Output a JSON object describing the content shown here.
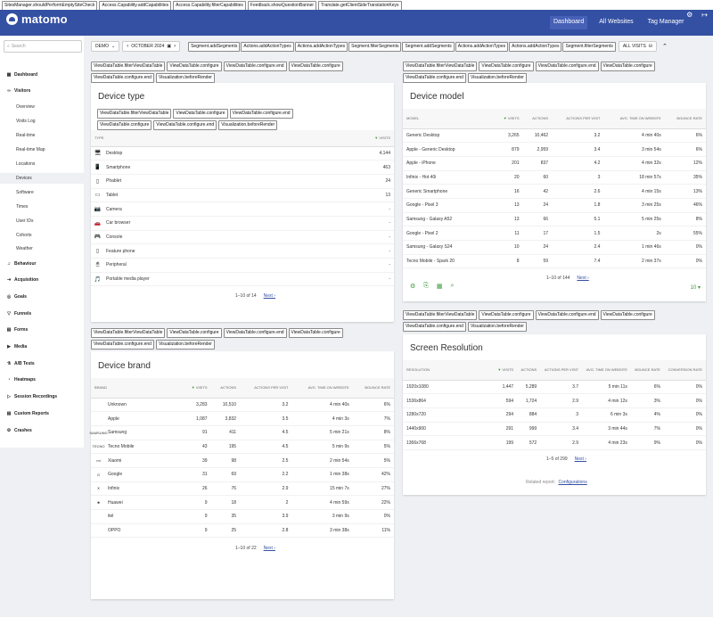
{
  "hooks_top": [
    "SitesManager.shouldPerformEmptySiteCheck",
    "Access.Capability.addCapabilities",
    "Access.Capability.filterCapabilities",
    "Feedback.showQuestionBanner",
    "Translate.getClientSideTranslationKeys"
  ],
  "brand": {
    "name": "matomo"
  },
  "topnav": {
    "dashboard": "Dashboard",
    "all_websites": "All Websites",
    "tag_manager": "Tag Manager"
  },
  "search": {
    "placeholder": "Search"
  },
  "sidebar": {
    "items": [
      {
        "label": "Dashboard",
        "type": "cat",
        "icon": "dashboard-icon"
      },
      {
        "label": "Visitors",
        "type": "cat",
        "icon": "visitors-icon"
      },
      {
        "label": "Overview",
        "type": "sub"
      },
      {
        "label": "Visits Log",
        "type": "sub"
      },
      {
        "label": "Real-time",
        "type": "sub"
      },
      {
        "label": "Real-time Map",
        "type": "sub"
      },
      {
        "label": "Locations",
        "type": "sub"
      },
      {
        "label": "Devices",
        "type": "sub",
        "selected": true
      },
      {
        "label": "Software",
        "type": "sub"
      },
      {
        "label": "Times",
        "type": "sub"
      },
      {
        "label": "User IDs",
        "type": "sub"
      },
      {
        "label": "Cohorts",
        "type": "sub"
      },
      {
        "label": "Weather",
        "type": "sub"
      },
      {
        "label": "Behaviour",
        "type": "cat",
        "icon": "bell-icon"
      },
      {
        "label": "Acquisition",
        "type": "cat",
        "icon": "acquisition-icon"
      },
      {
        "label": "Goals",
        "type": "cat",
        "icon": "target-icon"
      },
      {
        "label": "Funnels",
        "type": "cat",
        "icon": "funnel-icon"
      },
      {
        "label": "Forms",
        "type": "cat",
        "icon": "forms-icon"
      },
      {
        "label": "Media",
        "type": "cat",
        "icon": "media-icon"
      },
      {
        "label": "A/B Tests",
        "type": "cat",
        "icon": "flask-icon"
      },
      {
        "label": "Heatmaps",
        "type": "cat",
        "icon": "heatmap-icon"
      },
      {
        "label": "Session Recordings",
        "type": "cat",
        "icon": "play-icon"
      },
      {
        "label": "Custom Reports",
        "type": "cat",
        "icon": "report-icon"
      },
      {
        "label": "Crashes",
        "type": "cat",
        "icon": "bug-icon"
      }
    ]
  },
  "controls": {
    "site": "DEMO",
    "date": "OCTOBER 2024",
    "segment_hooks": [
      "Segment.addSegments",
      "Actions.addActionTypes",
      "Actions.addActionTypes",
      "Segment.filterSegments",
      "Segment.addSegments",
      "Actions.addActionTypes",
      "Actions.addActionTypes",
      "Segment.filterSegments"
    ],
    "segment": "ALL VISITS"
  },
  "viz_hooks_full": [
    "ViewDataTable.filterViewDataTable",
    "ViewDataTable.configure",
    "ViewDataTable.configure.end",
    "ViewDataTable.configure",
    "ViewDataTable.configure.end",
    "Visualization.beforeRender"
  ],
  "viz_hooks_r": [
    "ViewDataTable.filterViewDataTable",
    "ViewDataTable.configure",
    "ViewDataTable.configure.end",
    "ViewDataTable.configure",
    "ViewDataTable.configure.end",
    "Visualization.beforeRender"
  ],
  "device_type": {
    "title": "Device type",
    "inner_hooks": [
      "ViewDataTable.filterViewDataTable",
      "ViewDataTable.configure",
      "ViewDataTable.configure.end",
      "ViewDataTable.configure",
      "ViewDataTable.configure.end",
      "Visualization.beforeRender"
    ],
    "col_type": "TYPE",
    "col_visits": "VISITS",
    "rows": [
      {
        "label": "Desktop",
        "visits": "4,144",
        "icon": "desktop-icon",
        "glyph": "🖥"
      },
      {
        "label": "Smartphone",
        "visits": "463",
        "icon": "smartphone-icon",
        "glyph": "📱"
      },
      {
        "label": "Phablet",
        "visits": "24",
        "icon": "phablet-icon",
        "glyph": "▯"
      },
      {
        "label": "Tablet",
        "visits": "13",
        "icon": "tablet-icon",
        "glyph": "▭"
      },
      {
        "label": "Camera",
        "visits": "-",
        "icon": "camera-icon",
        "glyph": "📷"
      },
      {
        "label": "Car browser",
        "visits": "-",
        "icon": "car-icon",
        "glyph": "🚗"
      },
      {
        "label": "Console",
        "visits": "-",
        "icon": "console-icon",
        "glyph": "🎮"
      },
      {
        "label": "Feature phone",
        "visits": "-",
        "icon": "feature-phone-icon",
        "glyph": "▯"
      },
      {
        "label": "Peripheral",
        "visits": "-",
        "icon": "peripheral-icon",
        "glyph": "🖱"
      },
      {
        "label": "Portable media player",
        "visits": "-",
        "icon": "media-player-icon",
        "glyph": "🎵"
      }
    ],
    "pager": "1–10 of 14",
    "next": "Next ›"
  },
  "device_model": {
    "title": "Device model",
    "cols": [
      "MODEL",
      "VISITS",
      "ACTIONS",
      "ACTIONS PER VISIT",
      "AVG. TIME ON WEBSITE",
      "BOUNCE RATE"
    ],
    "rows": [
      [
        "Generic Desktop",
        "3,265",
        "10,462",
        "3.2",
        "4 min 40s",
        "6%"
      ],
      [
        "Apple - Generic Desktop",
        "879",
        "2,959",
        "3.4",
        "3 min 54s",
        "6%"
      ],
      [
        "Apple - iPhone",
        "201",
        "837",
        "4.2",
        "4 min 32s",
        "12%"
      ],
      [
        "Infinix - Hot 40i",
        "20",
        "60",
        "3",
        "18 min 57s",
        "35%"
      ],
      [
        "Generic Smartphone",
        "16",
        "42",
        "2.6",
        "4 min 15s",
        "13%"
      ],
      [
        "Google - Pixel 3",
        "13",
        "24",
        "1.8",
        "3 min 25s",
        "46%"
      ],
      [
        "Samsung - Galaxy A52",
        "13",
        "66",
        "5.1",
        "5 min 25s",
        "8%"
      ],
      [
        "Google - Pixel 2",
        "11",
        "17",
        "1.5",
        "2s",
        "55%"
      ],
      [
        "Samsung - Galaxy S24",
        "10",
        "24",
        "2.4",
        "1 min 46s",
        "0%"
      ],
      [
        "Tecno Mobile - Spark 20",
        "8",
        "59",
        "7.4",
        "2 min 37s",
        "0%"
      ]
    ],
    "pager": "1–10 of 144",
    "next": "Next ›",
    "limit": "10"
  },
  "device_brand": {
    "title": "Device brand",
    "cols": [
      "BRAND",
      "VISITS",
      "ACTIONS",
      "ACTIONS PER VISIT",
      "AVG. TIME ON WEBSITE",
      "BOUNCE RATE"
    ],
    "rows": [
      [
        "Unknown",
        "3,283",
        "10,510",
        "3.2",
        "4 min 40s",
        "6%"
      ],
      [
        "Apple",
        "1,087",
        "3,832",
        "3.5",
        "4 min 3s",
        "7%"
      ],
      [
        "Samsung",
        "91",
        "411",
        "4.5",
        "5 min 21s",
        "8%"
      ],
      [
        "Tecno Mobile",
        "43",
        "195",
        "4.5",
        "5 min 9s",
        "5%"
      ],
      [
        "Xiaomi",
        "39",
        "98",
        "2.5",
        "2 min 54s",
        "5%"
      ],
      [
        "Google",
        "31",
        "69",
        "2.2",
        "1 min 38s",
        "42%"
      ],
      [
        "Infinix",
        "26",
        "76",
        "2.9",
        "15 min 7s",
        "27%"
      ],
      [
        "Huawei",
        "9",
        "18",
        "2",
        "4 min 59s",
        "22%"
      ],
      [
        "itel",
        "9",
        "35",
        "3.9",
        "3 min 9s",
        "0%"
      ],
      [
        "OPPO",
        "9",
        "25",
        "2.8",
        "3 min 38s",
        "11%"
      ]
    ],
    "brand_icons": [
      "",
      "",
      "SAMSUNG",
      "TECNO",
      "mi",
      "G",
      "✕",
      "❀",
      "",
      ""
    ],
    "pager": "1–10 of 22",
    "next": "Next ›"
  },
  "screen_res": {
    "title": "Screen Resolution",
    "cols": [
      "RESOLUTION",
      "VISITS",
      "ACTIONS",
      "ACTIONS PER VISIT",
      "AVG. TIME ON WEBSITE",
      "BOUNCE RATE",
      "CONVERSION RATE"
    ],
    "rows": [
      [
        "1920x1080",
        "1,447",
        "5,289",
        "3.7",
        "5 min 11s",
        "6%",
        "0%"
      ],
      [
        "1536x864",
        "594",
        "1,724",
        "2.9",
        "4 min 12s",
        "3%",
        "0%"
      ],
      [
        "1280x720",
        "294",
        "884",
        "3",
        "6 min 3s",
        "4%",
        "0%"
      ],
      [
        "1440x900",
        "291",
        "999",
        "3.4",
        "3 min 44s",
        "7%",
        "0%"
      ],
      [
        "1366x768",
        "199",
        "572",
        "2.9",
        "4 min 23s",
        "9%",
        "0%"
      ]
    ],
    "pager": "1–5 of 299",
    "next": "Next ›",
    "related_prefix": "Related report:",
    "related_link": "Configurations"
  }
}
